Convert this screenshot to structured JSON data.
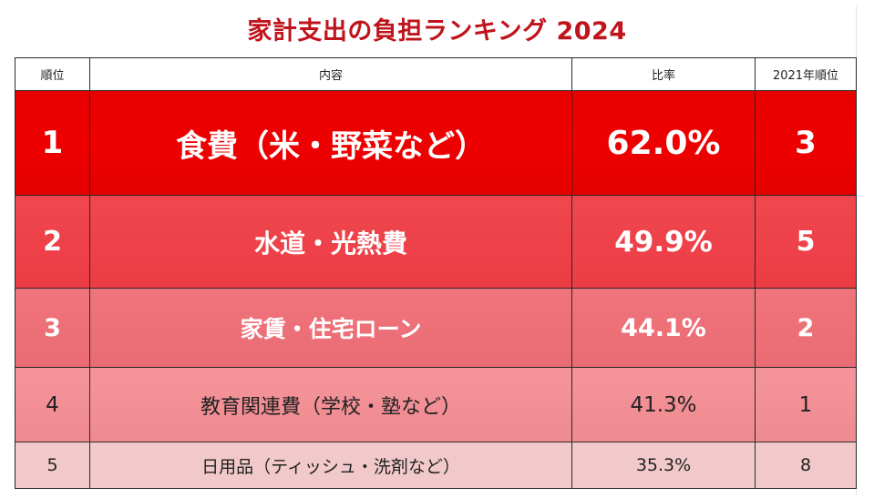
{
  "title": "家計支出の負担ランキング 2024",
  "table": {
    "headers": [
      "順位",
      "内容",
      "比率",
      "2021年順位"
    ],
    "rows": [
      {
        "rank": "1",
        "item": "食費（米・野菜など）",
        "ratio": "62.0%",
        "prev_rank": "3"
      },
      {
        "rank": "2",
        "item": "水道・光熱費",
        "ratio": "49.9%",
        "prev_rank": "5"
      },
      {
        "rank": "3",
        "item": "家賃・住宅ローン",
        "ratio": "44.1%",
        "prev_rank": "2"
      },
      {
        "rank": "4",
        "item": "教育関連費（学校・塾など）",
        "ratio": "41.3%",
        "prev_rank": "1"
      },
      {
        "rank": "5",
        "item": "日用品（ティッシュ・洗剤など）",
        "ratio": "35.3%",
        "prev_rank": "8"
      }
    ]
  },
  "colors": {
    "title": "#c0141c",
    "row1": "#e80000",
    "row2": "#ee4048",
    "row3": "#ec6f77",
    "row4": "#f08f95",
    "row5": "#f2c9cb"
  }
}
